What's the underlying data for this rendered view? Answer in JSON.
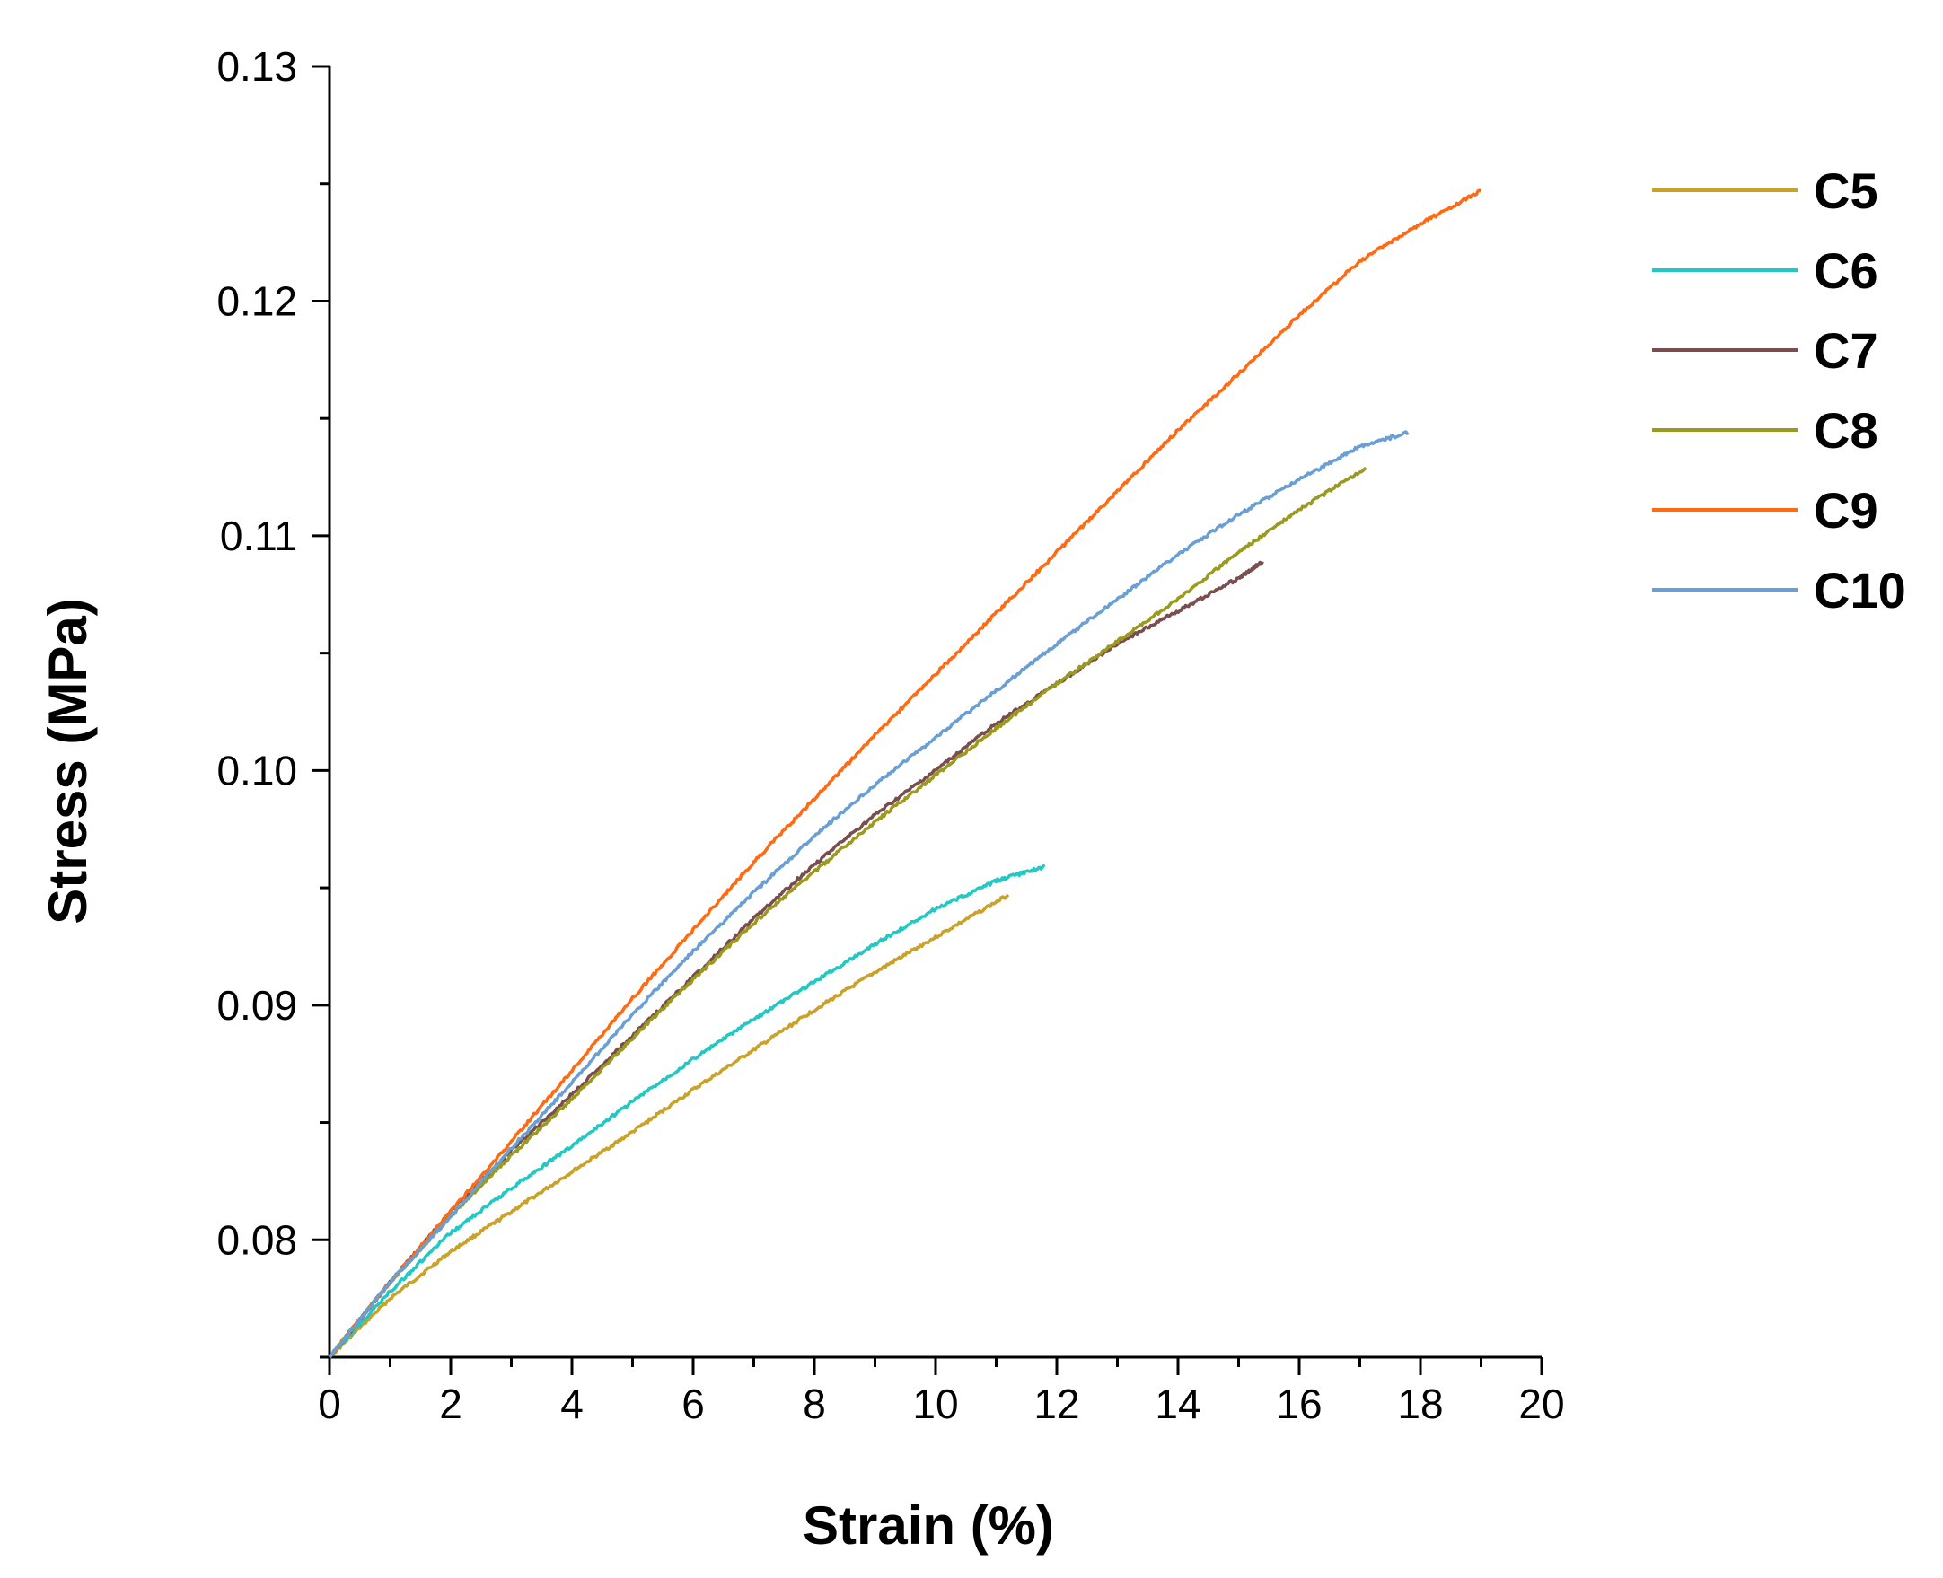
{
  "chart_data": {
    "type": "line",
    "title": "",
    "xlabel": "Strain (%)",
    "ylabel": "Stress (MPa)",
    "xlim": [
      0,
      20
    ],
    "ylim": [
      0.075,
      0.13
    ],
    "x_ticks": [
      0,
      2,
      4,
      6,
      8,
      10,
      12,
      14,
      16,
      18,
      20
    ],
    "x_tick_labels": [
      "0",
      "2",
      "4",
      "6",
      "8",
      "10",
      "12",
      "14",
      "16",
      "18",
      "20"
    ],
    "y_ticks": [
      0.08,
      0.09,
      0.1,
      0.11,
      0.12,
      0.13
    ],
    "y_tick_labels": [
      "0.08",
      "0.09",
      "0.10",
      "0.11",
      "0.12",
      "0.13"
    ],
    "x_minor_step": 1,
    "y_minor_step": 0.005,
    "grid": false,
    "legend_position": "right",
    "series": [
      {
        "name": "C5",
        "color": "#C9A227",
        "x": [
          0,
          1,
          2,
          3,
          4,
          5,
          6,
          7,
          8,
          9,
          10,
          11.2
        ],
        "y": [
          0.075,
          0.0775,
          0.0795,
          0.0812,
          0.0829,
          0.0846,
          0.0864,
          0.0881,
          0.0898,
          0.0914,
          0.0929,
          0.0947
        ]
      },
      {
        "name": "C6",
        "color": "#22C8C4",
        "x": [
          0,
          1,
          2,
          3,
          4,
          5,
          6,
          7,
          8,
          9,
          10,
          11,
          11.8
        ],
        "y": [
          0.075,
          0.0778,
          0.0803,
          0.0822,
          0.084,
          0.0859,
          0.0877,
          0.0894,
          0.091,
          0.0926,
          0.0941,
          0.0953,
          0.0959
        ]
      },
      {
        "name": "C7",
        "color": "#7A4E4E",
        "x": [
          0,
          1,
          2,
          3,
          4,
          5,
          6,
          7,
          8,
          9,
          10,
          11,
          12,
          13,
          14,
          15,
          15.4
        ],
        "y": [
          0.075,
          0.0782,
          0.0812,
          0.0838,
          0.0862,
          0.0887,
          0.0912,
          0.0937,
          0.096,
          0.0981,
          0.1,
          0.102,
          0.1037,
          0.1054,
          0.1068,
          0.1082,
          0.1089
        ]
      },
      {
        "name": "C8",
        "color": "#9A9A1E",
        "x": [
          0,
          1,
          2,
          3,
          4,
          5,
          6,
          7,
          8,
          9,
          10,
          11,
          12,
          13,
          14,
          15,
          16,
          17.1
        ],
        "y": [
          0.075,
          0.0782,
          0.081,
          0.0836,
          0.086,
          0.0886,
          0.0911,
          0.0935,
          0.0957,
          0.0978,
          0.0998,
          0.1018,
          0.1037,
          0.1055,
          0.1073,
          0.1093,
          0.1111,
          0.1129
        ]
      },
      {
        "name": "C9",
        "color": "#FF6A13",
        "x": [
          0,
          1,
          2,
          3,
          4,
          5,
          6,
          7,
          8,
          9,
          10,
          11,
          12,
          13,
          14,
          15,
          16,
          17,
          18,
          19
        ],
        "y": [
          0.075,
          0.0782,
          0.0812,
          0.0842,
          0.0872,
          0.0903,
          0.0932,
          0.0961,
          0.0988,
          0.1015,
          0.1041,
          0.1067,
          0.1093,
          0.1119,
          0.1145,
          0.1169,
          0.1194,
          0.1217,
          0.1233,
          0.1247
        ]
      },
      {
        "name": "C10",
        "color": "#6A9FD4",
        "x": [
          0,
          1,
          2,
          3,
          4,
          5,
          6,
          7,
          8,
          9,
          10,
          11,
          12,
          13,
          14,
          15,
          16,
          17,
          17.8
        ],
        "y": [
          0.075,
          0.0782,
          0.081,
          0.0839,
          0.0867,
          0.0896,
          0.0923,
          0.0948,
          0.0972,
          0.0994,
          0.1014,
          0.1034,
          0.1054,
          0.1073,
          0.1092,
          0.1109,
          0.1124,
          0.1138,
          0.1144
        ]
      }
    ]
  }
}
